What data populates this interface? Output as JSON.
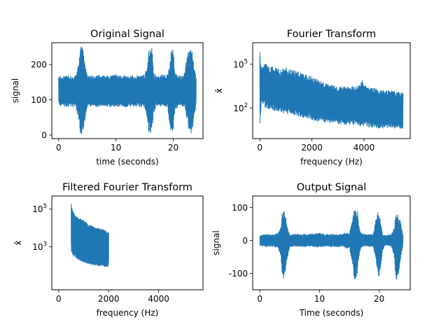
{
  "figure": {
    "line_color": "#1f77b4",
    "background": "#ffffff"
  },
  "chart_data": [
    {
      "id": "original",
      "type": "line",
      "title": "Original Signal",
      "xlabel": "time (seconds)",
      "ylabel": "signal",
      "xlim": [
        -1.2,
        25.2
      ],
      "ylim": [
        -10,
        262
      ],
      "yscale": "linear",
      "xticks": [
        0,
        10,
        20
      ],
      "yticks": [
        0,
        100,
        200
      ],
      "series": [
        {
          "x": [
            0,
            1,
            2,
            3,
            3.5,
            3.8,
            4,
            4.3,
            4.6,
            5,
            6,
            7,
            8,
            9,
            10,
            11,
            12,
            13,
            14,
            15,
            15.5,
            15.8,
            16,
            16.3,
            16.6,
            17,
            18,
            19,
            19.5,
            19.8,
            20,
            20.3,
            21,
            22,
            22.5,
            22.8,
            23,
            23.3,
            23.6,
            24
          ],
          "y_upper": [
            165,
            170,
            168,
            172,
            200,
            255,
            255,
            240,
            200,
            170,
            168,
            172,
            168,
            170,
            172,
            168,
            170,
            168,
            172,
            170,
            200,
            255,
            255,
            255,
            180,
            168,
            172,
            170,
            220,
            255,
            250,
            175,
            168,
            175,
            240,
            255,
            255,
            240,
            200,
            170
          ],
          "y_lower": [
            85,
            80,
            82,
            78,
            40,
            0,
            5,
            0,
            40,
            82,
            80,
            80,
            82,
            80,
            78,
            80,
            80,
            82,
            80,
            78,
            40,
            0,
            5,
            0,
            60,
            82,
            80,
            80,
            10,
            0,
            5,
            70,
            82,
            80,
            30,
            0,
            5,
            0,
            40,
            80
          ]
        }
      ]
    },
    {
      "id": "fourier",
      "type": "line",
      "title": "Fourier Transform",
      "xlabel": "frequency (Hz)",
      "ylabel": "x̂",
      "xlim": [
        -275,
        5775
      ],
      "ylim": [
        0.8,
        3000000
      ],
      "yscale": "log",
      "xticks": [
        0,
        2000,
        4000
      ],
      "ytick_labels": [
        {
          "base": "10",
          "exp": "5",
          "value": 100000
        },
        {
          "base": "10",
          "exp": "2",
          "value": 100
        }
      ],
      "series": [
        {
          "x": [
            0,
            50,
            100,
            200,
            400,
            600,
            800,
            1000,
            1500,
            2000,
            2500,
            3000,
            3500,
            3800,
            3950,
            4100,
            4500,
            5000,
            5500
          ],
          "y_upper": [
            2000000,
            100000,
            50000,
            150000,
            60000,
            80000,
            40000,
            60000,
            30000,
            15000,
            5000,
            3000,
            3000,
            3500,
            12000,
            3500,
            2000,
            1500,
            1200
          ],
          "y_lower": [
            2,
            100,
            200,
            100,
            80,
            60,
            50,
            40,
            25,
            15,
            10,
            8,
            7,
            6,
            5,
            5,
            4,
            4,
            4
          ]
        }
      ]
    },
    {
      "id": "filtered",
      "type": "line",
      "title": "Filtered Fourier Transform",
      "xlabel": "frequency (Hz)",
      "ylabel": "x̂",
      "xlim": [
        -275,
        5775
      ],
      "ylim": [
        5,
        500000
      ],
      "yscale": "log",
      "xticks": [
        0,
        2000,
        4000
      ],
      "ytick_labels": [
        {
          "base": "10",
          "exp": "5",
          "value": 100000
        },
        {
          "base": "10",
          "exp": "3",
          "value": 1000
        }
      ],
      "series": [
        {
          "x": [
            500,
            520,
            550,
            600,
            700,
            800,
            1000,
            1200,
            1500,
            1800,
            1950,
            2000
          ],
          "y_upper": [
            200000,
            150000,
            100000,
            60000,
            40000,
            35000,
            25000,
            15000,
            10000,
            8000,
            6000,
            6000
          ],
          "y_lower": [
            800,
            500,
            400,
            300,
            250,
            200,
            150,
            120,
            100,
            90,
            80,
            80
          ]
        }
      ]
    },
    {
      "id": "output",
      "type": "line",
      "title": "Output Signal",
      "xlabel": "Time (seconds)",
      "ylabel": "signal",
      "xlim": [
        -1.2,
        25.2
      ],
      "ylim": [
        -150,
        135
      ],
      "yscale": "linear",
      "xticks": [
        0,
        10,
        20
      ],
      "yticks": [
        100,
        0,
        -100
      ],
      "series": [
        {
          "x": [
            0,
            1,
            2,
            3,
            3.5,
            3.8,
            4,
            4.3,
            4.6,
            5,
            6,
            7,
            8,
            9,
            10,
            11,
            12,
            13,
            14,
            14.5,
            15,
            15.5,
            15.8,
            16,
            16.3,
            16.6,
            17,
            18,
            19,
            19.5,
            19.8,
            20,
            20.3,
            20.6,
            21,
            22,
            22.5,
            22.8,
            23,
            23.3,
            23.6,
            24
          ],
          "y_upper": [
            15,
            20,
            18,
            22,
            40,
            95,
            100,
            80,
            40,
            18,
            20,
            18,
            20,
            20,
            22,
            18,
            20,
            18,
            20,
            25,
            22,
            60,
            105,
            95,
            100,
            50,
            20,
            18,
            20,
            70,
            90,
            80,
            50,
            20,
            15,
            18,
            40,
            80,
            85,
            70,
            60,
            15
          ],
          "y_lower": [
            -15,
            -20,
            -18,
            -22,
            -50,
            -125,
            -120,
            -100,
            -60,
            -20,
            -18,
            -20,
            -18,
            -20,
            -22,
            -18,
            -20,
            -20,
            -18,
            -25,
            -22,
            -70,
            -115,
            -120,
            -110,
            -50,
            -20,
            -18,
            -20,
            -70,
            -110,
            -120,
            -80,
            -30,
            -15,
            -18,
            -50,
            -115,
            -120,
            -100,
            -60,
            -15
          ]
        }
      ]
    }
  ]
}
